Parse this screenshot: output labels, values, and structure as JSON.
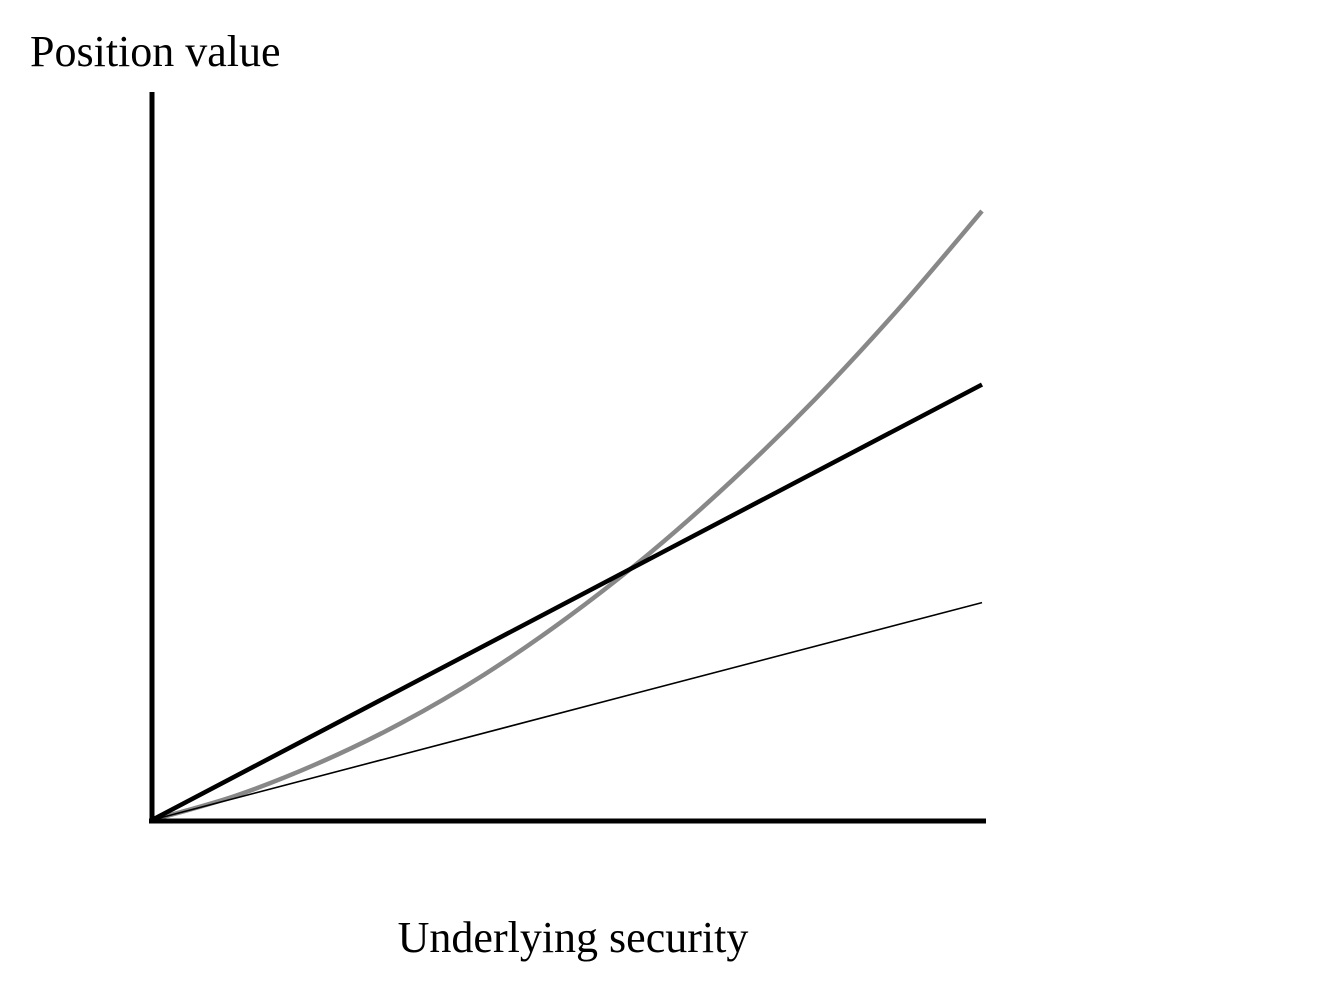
{
  "chart_data": {
    "type": "line",
    "title": "",
    "xlabel": "Underlying security",
    "ylabel": "Position value",
    "xlim": [
      0,
      1
    ],
    "ylim": [
      0,
      1
    ],
    "grid": false,
    "legend": "none",
    "series": [
      {
        "color": "#888888",
        "style": "thick",
        "x": [
          0,
          0.1,
          0.2,
          0.3,
          0.4,
          0.5,
          0.6,
          0.7,
          0.8,
          0.9,
          1.0
        ],
        "y": [
          0,
          0.0395,
          0.093,
          0.159,
          0.2385,
          0.332,
          0.4385,
          0.559,
          0.6925,
          0.84,
          1.0
        ]
      },
      {
        "color": "#000000",
        "style": "thick",
        "x": [
          0,
          1
        ],
        "y": [
          0,
          0.715
        ]
      },
      {
        "color": "#000000",
        "style": "thin",
        "x": [
          0,
          1
        ],
        "y": [
          0,
          0.357
        ]
      }
    ]
  }
}
